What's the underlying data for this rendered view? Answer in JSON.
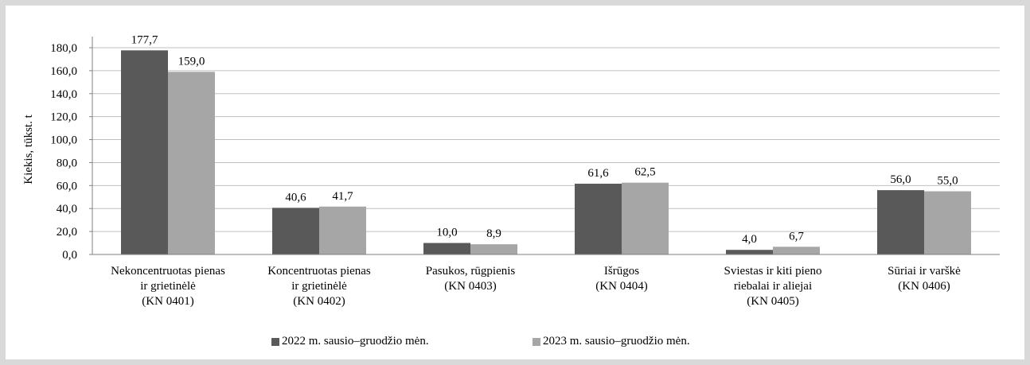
{
  "chart_data": {
    "type": "bar",
    "ylabel": "Kiekis, tūkst. t",
    "ylim": [
      0,
      180
    ],
    "ytick_step": 20,
    "ytick_labels": [
      "0,0",
      "20,0",
      "40,0",
      "60,0",
      "80,0",
      "100,0",
      "120,0",
      "140,0",
      "160,0",
      "180,0"
    ],
    "grid": true,
    "legend_position": "bottom",
    "categories": [
      [
        "Nekoncentruotas pienas",
        "ir grietinėlė",
        "(KN 0401)"
      ],
      [
        "Koncentruotas pienas",
        "ir grietinėlė",
        "(KN 0402)"
      ],
      [
        "Pasukos, rūgpienis",
        "(KN 0403)"
      ],
      [
        "Išrūgos",
        "(KN 0404)"
      ],
      [
        "Sviestas ir kiti pieno",
        "riebalai ir aliejai",
        "(KN 0405)"
      ],
      [
        "Sūriai ir varškė",
        "(KN 0406)"
      ]
    ],
    "series": [
      {
        "name": "2022 m. sausio–gruodžio mėn.",
        "color": "#595959",
        "values": [
          177.7,
          40.6,
          10.0,
          61.6,
          4.0,
          56.0
        ],
        "labels": [
          "177,7",
          "40,6",
          "10,0",
          "61,6",
          "4,0",
          "56,0"
        ]
      },
      {
        "name": "2023 m. sausio–gruodžio mėn.",
        "color": "#a6a6a6",
        "values": [
          159.0,
          41.7,
          8.9,
          62.5,
          6.7,
          55.0
        ],
        "labels": [
          "159,0",
          "41,7",
          "8,9",
          "62,5",
          "6,7",
          "55,0"
        ]
      }
    ]
  }
}
